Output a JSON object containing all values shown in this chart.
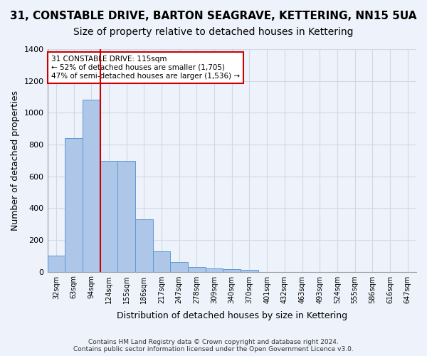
{
  "title": "31, CONSTABLE DRIVE, BARTON SEAGRAVE, KETTERING, NN15 5UA",
  "subtitle": "Size of property relative to detached houses in Kettering",
  "xlabel": "Distribution of detached houses by size in Kettering",
  "ylabel": "Number of detached properties",
  "bar_values": [
    100,
    840,
    1080,
    695,
    695,
    330,
    130,
    60,
    30,
    20,
    15,
    10,
    0,
    0,
    0,
    0,
    0,
    0,
    0,
    0,
    0
  ],
  "categories": [
    "32sqm",
    "63sqm",
    "94sqm",
    "124sqm",
    "155sqm",
    "186sqm",
    "217sqm",
    "247sqm",
    "278sqm",
    "309sqm",
    "340sqm",
    "370sqm",
    "401sqm",
    "432sqm",
    "463sqm",
    "493sqm",
    "524sqm",
    "555sqm",
    "586sqm",
    "616sqm",
    "647sqm"
  ],
  "bar_color": "#aec6e8",
  "bar_edge_color": "#5b9bd5",
  "grid_color": "#d0d8e8",
  "background_color": "#eef2fa",
  "vline_x": 2.5,
  "vline_color": "#cc0000",
  "annotation_text": "31 CONSTABLE DRIVE: 115sqm\n← 52% of detached houses are smaller (1,705)\n47% of semi-detached houses are larger (1,536) →",
  "annotation_box_color": "#ffffff",
  "annotation_box_edge": "#cc0000",
  "ylim": [
    0,
    1400
  ],
  "yticks": [
    0,
    200,
    400,
    600,
    800,
    1000,
    1200,
    1400
  ],
  "footer": "Contains HM Land Registry data © Crown copyright and database right 2024.\nContains public sector information licensed under the Open Government Licence v3.0.",
  "title_fontsize": 11,
  "subtitle_fontsize": 10,
  "xlabel_fontsize": 9,
  "ylabel_fontsize": 9
}
